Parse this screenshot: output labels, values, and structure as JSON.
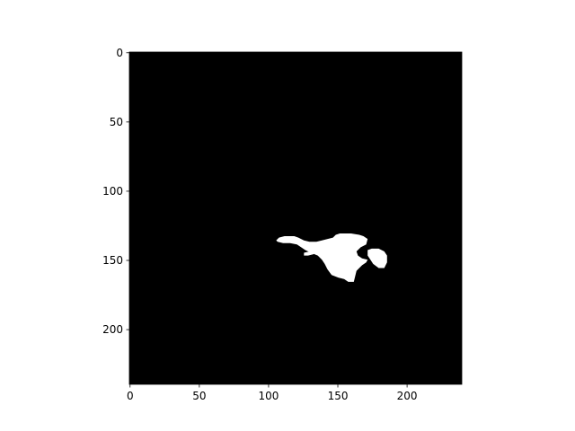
{
  "chart_data": {
    "type": "heatmap",
    "title": "",
    "xlabel": "",
    "ylabel": "",
    "image_size": [
      240,
      240
    ],
    "xlim": [
      0,
      240
    ],
    "ylim": [
      240,
      0
    ],
    "xticks": [
      0,
      50,
      100,
      150,
      200
    ],
    "yticks": [
      0,
      50,
      100,
      150,
      200
    ],
    "xtick_labels": [
      "0",
      "50",
      "100",
      "150",
      "200"
    ],
    "ytick_labels": [
      "0",
      "50",
      "100",
      "150",
      "200"
    ],
    "colormap": "gray",
    "colors": {
      "background": "#000000",
      "foreground": "#ffffff"
    },
    "mask_regions": [
      {
        "name": "main-blob",
        "outline": [
          [
            106,
            136
          ],
          [
            108,
            134
          ],
          [
            112,
            133
          ],
          [
            116,
            133
          ],
          [
            119,
            133
          ],
          [
            122,
            134
          ],
          [
            126,
            136
          ],
          [
            130,
            137
          ],
          [
            135,
            137
          ],
          [
            139,
            136
          ],
          [
            147,
            134
          ],
          [
            149,
            132
          ],
          [
            152,
            131
          ],
          [
            160,
            131
          ],
          [
            166,
            132
          ],
          [
            169,
            133
          ],
          [
            172,
            135
          ],
          [
            171,
            139
          ],
          [
            167,
            141
          ],
          [
            164,
            144
          ],
          [
            165,
            147
          ],
          [
            168,
            149
          ],
          [
            172,
            150
          ],
          [
            171,
            152
          ],
          [
            168,
            154
          ],
          [
            166,
            156
          ],
          [
            164,
            158
          ],
          [
            163,
            162
          ],
          [
            162,
            166
          ],
          [
            158,
            166
          ],
          [
            155,
            164
          ],
          [
            151,
            163
          ],
          [
            146,
            161
          ],
          [
            143,
            157
          ],
          [
            141,
            153
          ],
          [
            139,
            150
          ],
          [
            136,
            147
          ],
          [
            131,
            145
          ],
          [
            127,
            143
          ],
          [
            124,
            141
          ],
          [
            121,
            139
          ],
          [
            116,
            138
          ],
          [
            111,
            138
          ],
          [
            107,
            137
          ]
        ]
      },
      {
        "name": "left-fragment",
        "outline": [
          [
            126,
            145
          ],
          [
            130,
            144
          ],
          [
            134,
            144
          ],
          [
            133,
            146
          ],
          [
            129,
            147
          ],
          [
            126,
            147
          ]
        ]
      },
      {
        "name": "right-blob",
        "outline": [
          [
            172,
            143
          ],
          [
            175,
            142
          ],
          [
            180,
            142
          ],
          [
            184,
            144
          ],
          [
            186,
            147
          ],
          [
            186,
            152
          ],
          [
            184,
            156
          ],
          [
            180,
            156
          ],
          [
            176,
            153
          ],
          [
            174,
            150
          ],
          [
            172,
            147
          ],
          [
            172,
            145
          ]
        ]
      }
    ]
  }
}
